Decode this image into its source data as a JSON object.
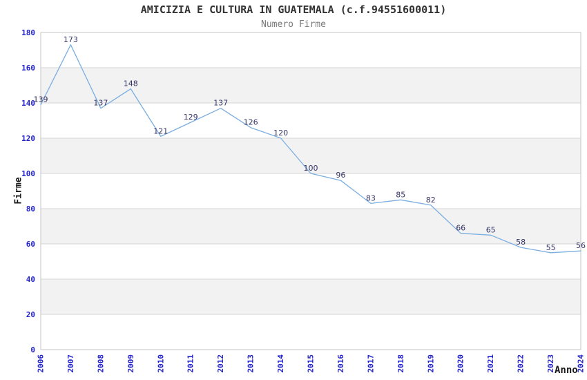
{
  "header": {
    "title": "AMICIZIA E CULTURA IN GUATEMALA (c.f.94551600011)",
    "subtitle": "Numero Firme"
  },
  "chart_data": {
    "type": "line",
    "title": "AMICIZIA E CULTURA IN GUATEMALA (c.f.94551600011)",
    "subtitle": "Numero Firme",
    "xlabel": "Anno",
    "ylabel": "Firme",
    "categories": [
      "2006",
      "2007",
      "2008",
      "2009",
      "2010",
      "2011",
      "2012",
      "2013",
      "2014",
      "2015",
      "2016",
      "2017",
      "2018",
      "2019",
      "2020",
      "2021",
      "2022",
      "2023",
      "2024"
    ],
    "values": [
      139,
      173,
      137,
      148,
      121,
      129,
      137,
      126,
      120,
      100,
      96,
      83,
      85,
      82,
      66,
      65,
      58,
      55,
      56
    ],
    "ylim": [
      0,
      180
    ],
    "ytick_step": 20,
    "grid": true,
    "legend": null,
    "data_labels_visible": true,
    "x_tick_rotation_deg": -90
  },
  "colors": {
    "line": "#7aade0",
    "tick_label": "#2222cc",
    "data_label": "#333366",
    "band_fill": "#f2f2f2",
    "gridline": "#d4d4d4",
    "plot_border": "#c4c4c4",
    "title": "#333333",
    "subtitle": "#787878",
    "axis_title": "#1a1a1a",
    "background": "#ffffff"
  }
}
